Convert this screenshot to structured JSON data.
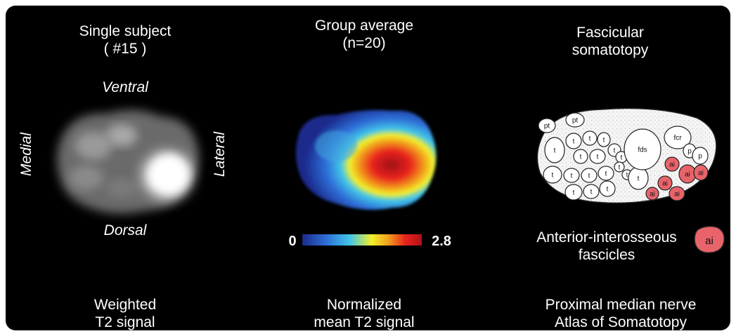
{
  "panel1": {
    "title_line1": "Single subject",
    "title_line2": "( #15 )",
    "label_ventral": "Ventral",
    "label_dorsal": "Dorsal",
    "label_medial": "Medial",
    "label_lateral": "Lateral",
    "caption_line1": "Weighted",
    "caption_line2": "T2 signal"
  },
  "panel2": {
    "title_line1": "Group average",
    "title_line2": "(n=20)",
    "colorbar_min": "0",
    "colorbar_max": "2.8",
    "colormap": [
      "#1a2a8c",
      "#2e6fd8",
      "#42c6e8",
      "#f2ef2a",
      "#f2a01e",
      "#e8241c",
      "#b0101a"
    ],
    "caption_line1": "Normalized",
    "caption_line2": "mean T2 signal"
  },
  "panel3": {
    "title_line1": "Fascicular",
    "title_line2": "somatotopy",
    "fascicle_labels": {
      "pt": "pt",
      "t": "t",
      "fds": "fds",
      "fcr": "fcr",
      "p": "p",
      "ai": "ai"
    },
    "ai_color": "#e8646a",
    "legend_line1": "Anterior-interosseous",
    "legend_line2": "fascicles",
    "caption_line1": "Proximal median nerve",
    "caption_line2": "Atlas of Somatotopy"
  }
}
